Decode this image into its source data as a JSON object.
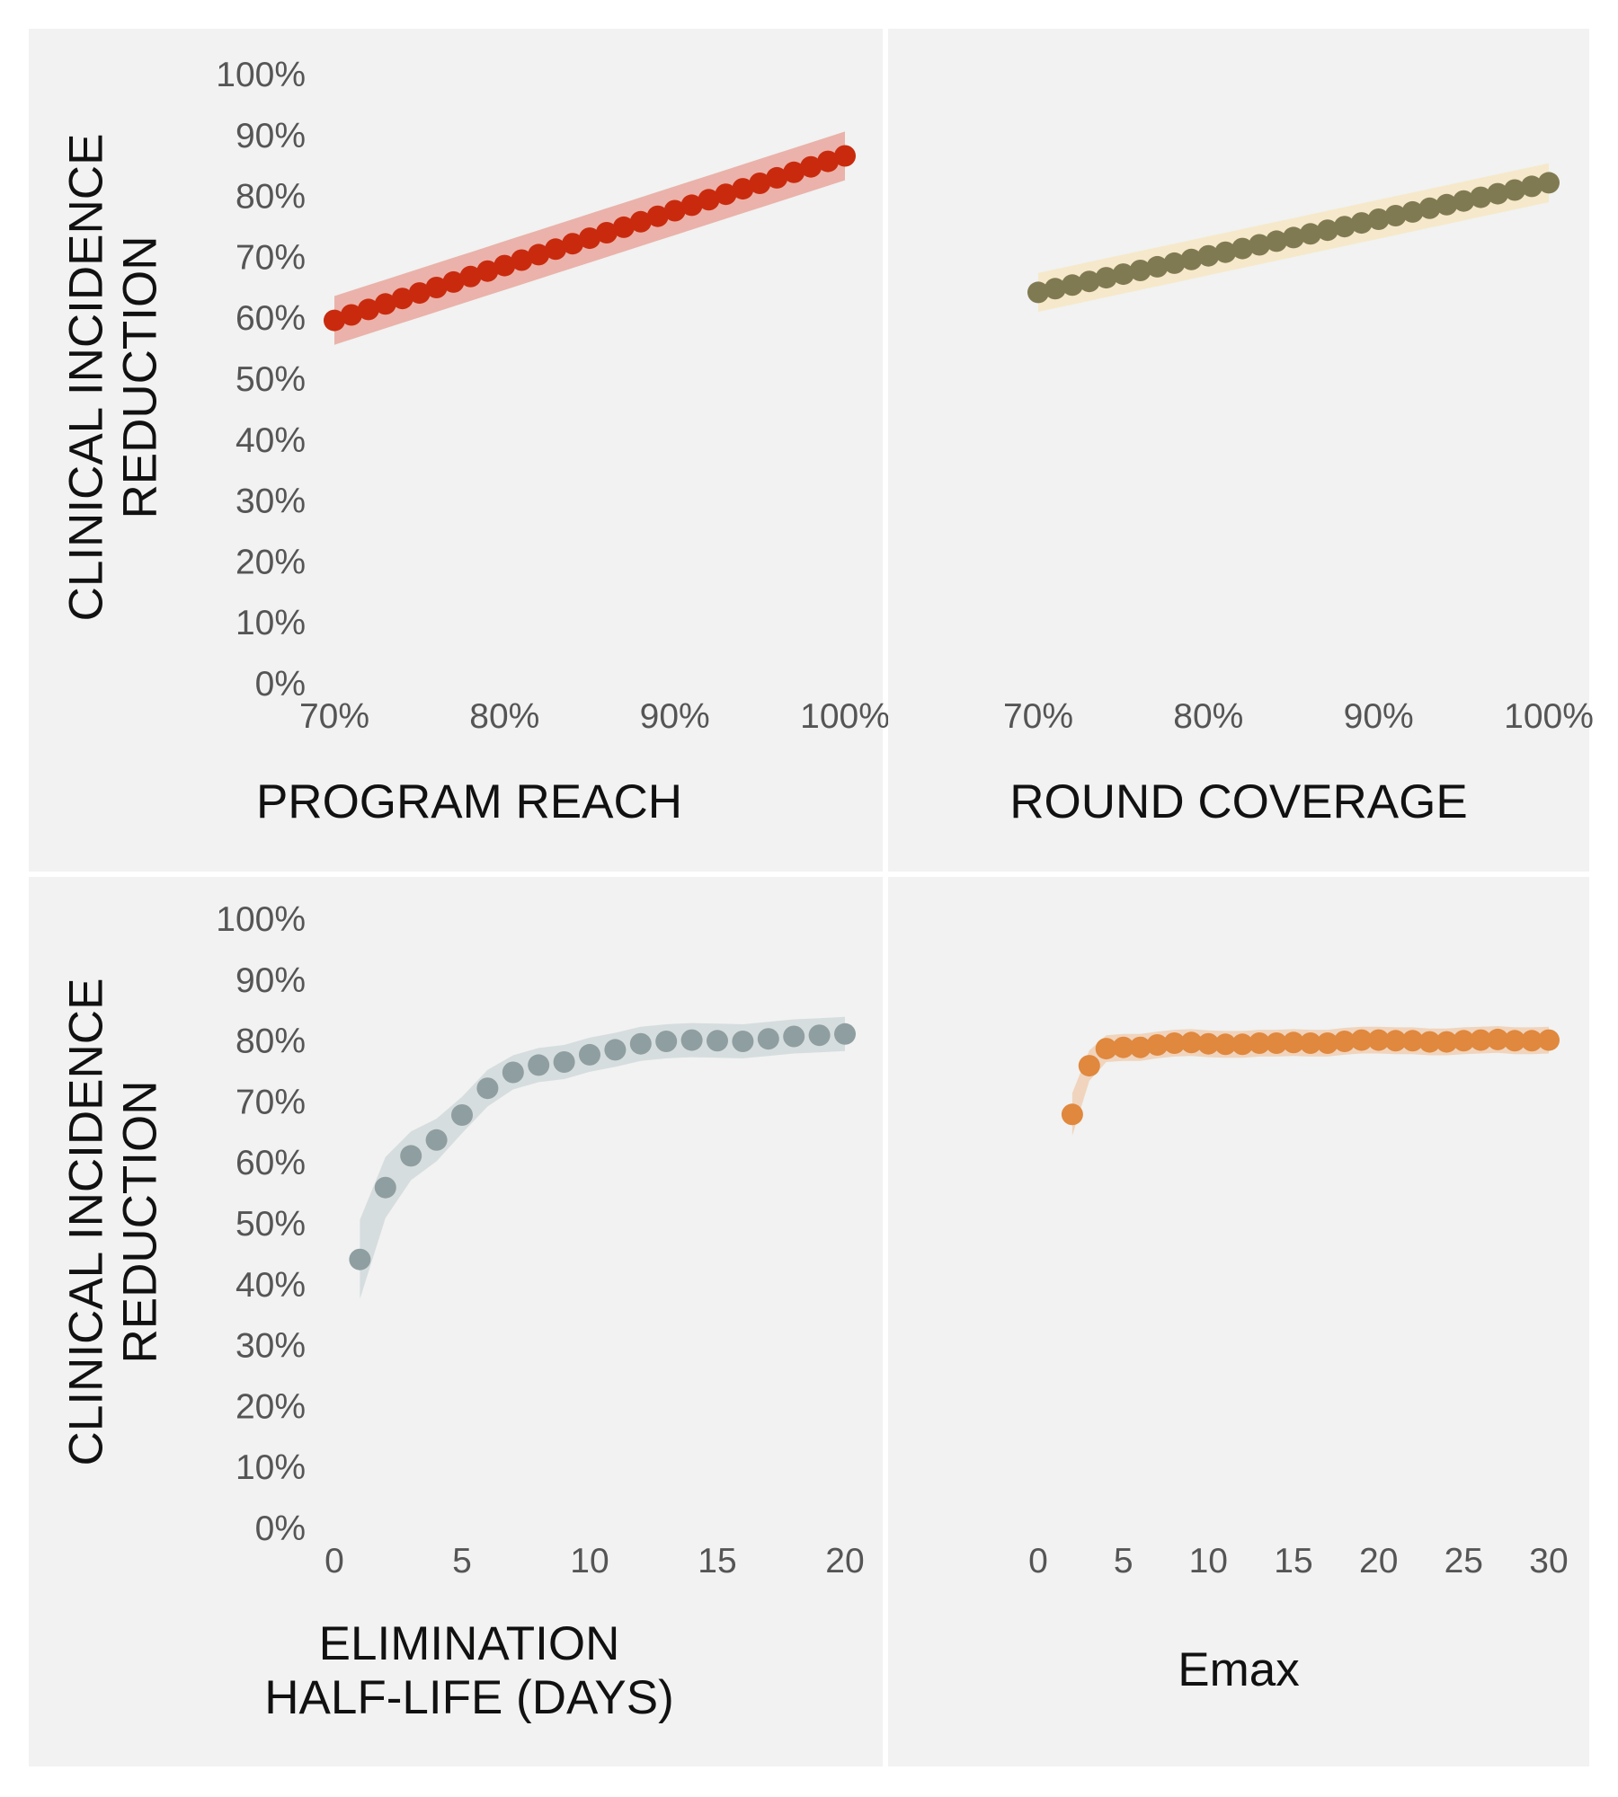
{
  "colors": {
    "panel_bg": "#f1f2f1",
    "divider": "#ffffff",
    "tick_text": "#555555",
    "label_text": "#111111"
  },
  "chart_data": [
    {
      "type": "scatter",
      "xlabel": "PROGRAM  REACH",
      "ylabel": [
        "CLINICAL  INCIDENCE",
        "REDUCTION"
      ],
      "xlim": [
        70,
        100
      ],
      "ylim": [
        0,
        100
      ],
      "x_ticks": [
        "70%",
        "80%",
        "90%",
        "100%"
      ],
      "x_tick_values": [
        70,
        80,
        90,
        100
      ],
      "y_ticks": [
        "0%",
        "10%",
        "20%",
        "30%",
        "40%",
        "50%",
        "60%",
        "70%",
        "80%",
        "90%",
        "100%"
      ],
      "y_tick_values": [
        0,
        10,
        20,
        30,
        40,
        50,
        60,
        70,
        80,
        90,
        100
      ],
      "point_color": "#c92a0e",
      "band_color": "#e9a79d",
      "band_halfwidth": 4,
      "x": [
        70,
        71,
        72,
        73,
        74,
        75,
        76,
        77,
        78,
        79,
        80,
        81,
        82,
        83,
        84,
        85,
        86,
        87,
        88,
        89,
        90,
        91,
        92,
        93,
        94,
        95,
        96,
        97,
        98,
        99,
        100
      ],
      "y": [
        59.5,
        60.4,
        61.3,
        62.2,
        63.1,
        64.0,
        64.9,
        65.8,
        66.7,
        67.6,
        68.5,
        69.4,
        70.3,
        71.2,
        72.1,
        73.0,
        73.9,
        74.8,
        75.7,
        76.6,
        77.5,
        78.4,
        79.3,
        80.2,
        81.1,
        82.0,
        82.9,
        83.8,
        84.7,
        85.6,
        86.5
      ]
    },
    {
      "type": "scatter",
      "xlabel": "ROUND  COVERAGE",
      "xlim": [
        70,
        100
      ],
      "ylim": [
        0,
        100
      ],
      "x_ticks": [
        "70%",
        "80%",
        "90%",
        "100%"
      ],
      "x_tick_values": [
        70,
        80,
        90,
        100
      ],
      "point_color": "#807a52",
      "band_color": "#f7e8c4",
      "band_halfwidth": 3.2,
      "x": [
        70,
        71,
        72,
        73,
        74,
        75,
        76,
        77,
        78,
        79,
        80,
        81,
        82,
        83,
        84,
        85,
        86,
        87,
        88,
        89,
        90,
        91,
        92,
        93,
        94,
        95,
        96,
        97,
        98,
        99,
        100
      ],
      "y": [
        64.1,
        64.7,
        65.3,
        65.9,
        66.5,
        67.1,
        67.7,
        68.3,
        68.9,
        69.5,
        70.1,
        70.7,
        71.3,
        71.9,
        72.5,
        73.1,
        73.7,
        74.3,
        74.9,
        75.5,
        76.1,
        76.7,
        77.3,
        77.9,
        78.5,
        79.1,
        79.7,
        80.3,
        80.9,
        81.5,
        82.1
      ]
    },
    {
      "type": "scatter",
      "xlabel": [
        "ELIMINATION",
        "HALF-LIFE  (DAYS)"
      ],
      "ylabel": [
        "CLINICAL  INCIDENCE",
        "REDUCTION"
      ],
      "xlim": [
        0,
        20
      ],
      "ylim": [
        0,
        100
      ],
      "x_ticks": [
        "0",
        "5",
        "10",
        "15",
        "20"
      ],
      "x_tick_values": [
        0,
        5,
        10,
        15,
        20
      ],
      "y_ticks": [
        "0%",
        "10%",
        "20%",
        "30%",
        "40%",
        "50%",
        "60%",
        "70%",
        "80%",
        "90%",
        "100%"
      ],
      "y_tick_values": [
        0,
        10,
        20,
        30,
        40,
        50,
        60,
        70,
        80,
        90,
        100
      ],
      "point_color": "#8f9ea1",
      "band_color": "#d1d9da",
      "band_halfwidth": [
        6.5,
        5,
        4,
        3.5,
        3,
        3,
        2.8,
        2.8,
        2.8,
        2.8,
        2.8,
        2.8,
        2.8,
        2.8,
        2.8,
        2.8,
        2.8,
        2.8,
        2.8,
        2.8
      ],
      "x": [
        1,
        2,
        3,
        4,
        5,
        6,
        7,
        8,
        9,
        10,
        11,
        12,
        13,
        14,
        15,
        16,
        17,
        18,
        19,
        20
      ],
      "y": [
        44.0,
        55.8,
        61.0,
        63.6,
        67.7,
        72.1,
        74.7,
        75.9,
        76.4,
        77.6,
        78.4,
        79.4,
        79.8,
        80.0,
        79.9,
        79.8,
        80.2,
        80.6,
        80.8,
        81.0
      ]
    },
    {
      "type": "scatter",
      "xlabel": "Emax",
      "xlim": [
        0,
        30
      ],
      "ylim": [
        0,
        100
      ],
      "x_ticks": [
        "0",
        "5",
        "10",
        "15",
        "20",
        "25",
        "30"
      ],
      "x_tick_values": [
        0,
        5,
        10,
        15,
        20,
        25,
        30
      ],
      "point_color": "#e0883e",
      "band_color": "#f0cfb4",
      "band_halfwidth": [
        3.5,
        2.5,
        2.2,
        2.2,
        2.2,
        2.2,
        2.2,
        2.2,
        2.2,
        2.2,
        2.2,
        2.2,
        2.2,
        2.2,
        2.2,
        2.2,
        2.2,
        2.2,
        2.2,
        2.2,
        2.2,
        2.2,
        2.2,
        2.2,
        2.2,
        2.2,
        2.2,
        2.2,
        2.2
      ],
      "x": [
        2,
        3,
        4,
        5,
        6,
        7,
        8,
        9,
        10,
        11,
        12,
        13,
        14,
        15,
        16,
        17,
        18,
        19,
        20,
        21,
        22,
        23,
        24,
        25,
        26,
        27,
        28,
        29,
        30
      ],
      "y": [
        67.8,
        75.8,
        78.6,
        78.8,
        78.8,
        79.2,
        79.5,
        79.6,
        79.4,
        79.3,
        79.3,
        79.5,
        79.5,
        79.6,
        79.5,
        79.5,
        79.8,
        80.0,
        80.0,
        79.9,
        79.9,
        79.7,
        79.7,
        79.9,
        80.0,
        80.1,
        79.9,
        79.9,
        80.0
      ]
    }
  ]
}
